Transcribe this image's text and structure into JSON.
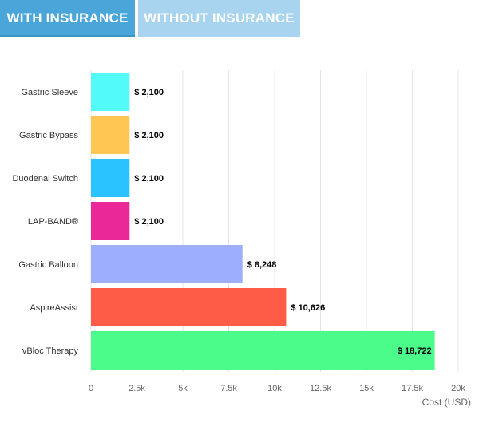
{
  "tabs": [
    {
      "label": "WITH INSURANCE",
      "active": true
    },
    {
      "label": "WITHOUT INSURANCE",
      "active": false
    }
  ],
  "chart_data": {
    "type": "bar",
    "orientation": "horizontal",
    "xlabel": "Cost (USD)",
    "xlim": [
      0,
      20000
    ],
    "xticks": [
      {
        "value": 0,
        "label": "0"
      },
      {
        "value": 2500,
        "label": "2.5k"
      },
      {
        "value": 5000,
        "label": "5k"
      },
      {
        "value": 7500,
        "label": "7.5k"
      },
      {
        "value": 10000,
        "label": "10k"
      },
      {
        "value": 12500,
        "label": "12.5k"
      },
      {
        "value": 15000,
        "label": "15k"
      },
      {
        "value": 17500,
        "label": "17.5k"
      },
      {
        "value": 20000,
        "label": "20k"
      }
    ],
    "grid": true,
    "categories": [
      "Gastric Sleeve",
      "Gastric Bypass",
      "Duodenal Switch",
      "LAP-BAND®",
      "Gastric Balloon",
      "AspireAssist",
      "vBloc Therapy"
    ],
    "values": [
      2100,
      2100,
      2100,
      2100,
      8248,
      10626,
      18722
    ],
    "value_labels": [
      "$ 2,100",
      "$ 2,100",
      "$ 2,100",
      "$ 2,100",
      "$ 8,248",
      "$ 10,626",
      "$ 18,722"
    ],
    "colors": [
      "#52fbf9",
      "#ffc751",
      "#2ac3ff",
      "#ea2898",
      "#9eaeff",
      "#ff5c47",
      "#4bfc8a"
    ]
  }
}
